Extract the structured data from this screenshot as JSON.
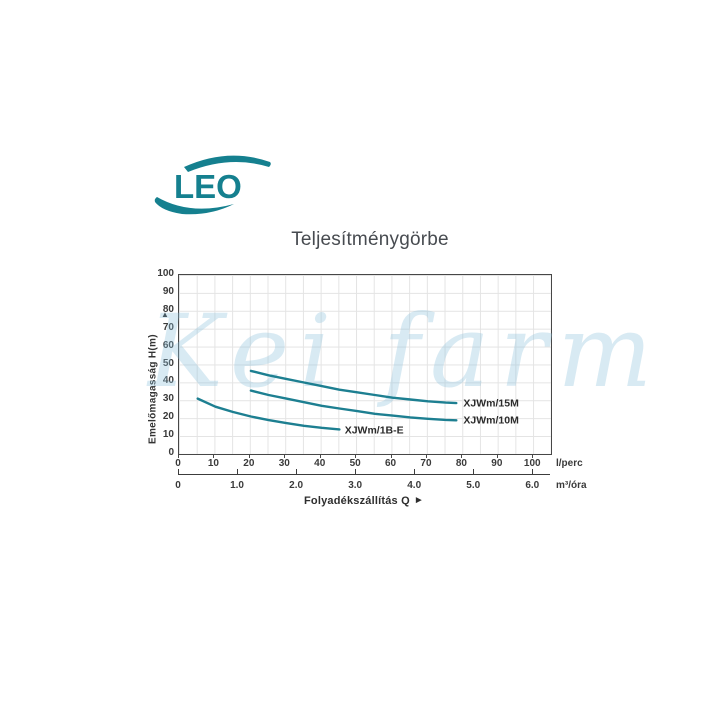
{
  "brand": {
    "logo_text": "LEO",
    "color": "#15808f"
  },
  "title": "Teljesítménygörbe",
  "watermark": "Kei farm",
  "icons": {
    "up_arrow": "▲",
    "right_arrow": "►"
  },
  "chart_data": {
    "type": "line",
    "title": "Teljesítménygörbe",
    "curve_color": "#1d7f91",
    "grid": {
      "x_step_lperc": 5,
      "y_step_m": 10,
      "grid_on": true
    },
    "y_axis": {
      "label": "Emelőmagasság  H(m)",
      "ticks": [
        0,
        10,
        20,
        30,
        40,
        50,
        60,
        70,
        80,
        90,
        100
      ],
      "range": [
        0,
        100
      ]
    },
    "x_axis": {
      "label": "Folyadékszállítás Q",
      "primary_unit": "l/perc",
      "primary_ticks": [
        0,
        10,
        20,
        30,
        40,
        50,
        60,
        70,
        80,
        90,
        100
      ],
      "primary_range": [
        0,
        105
      ],
      "secondary_unit": "m³/óra",
      "secondary_tick_labels": [
        "0",
        "1.0",
        "2.0",
        "3.0",
        "4.0",
        "5.0",
        "6.0"
      ]
    },
    "series": [
      {
        "name": "XJWm/15M",
        "points": [
          [
            20,
            47
          ],
          [
            25,
            44.5
          ],
          [
            30,
            42.5
          ],
          [
            35,
            40.5
          ],
          [
            40,
            38.5
          ],
          [
            45,
            36.5
          ],
          [
            50,
            35
          ],
          [
            55,
            33.5
          ],
          [
            60,
            32
          ],
          [
            65,
            31
          ],
          [
            70,
            30
          ],
          [
            75,
            29.3
          ],
          [
            78,
            29
          ]
        ],
        "label_at": [
          80,
          29
        ]
      },
      {
        "name": "XJWm/10M",
        "points": [
          [
            20,
            36
          ],
          [
            25,
            33.5
          ],
          [
            30,
            31.5
          ],
          [
            35,
            29.5
          ],
          [
            40,
            27.5
          ],
          [
            45,
            26
          ],
          [
            50,
            24.5
          ],
          [
            55,
            23
          ],
          [
            60,
            22
          ],
          [
            65,
            21
          ],
          [
            70,
            20.2
          ],
          [
            75,
            19.6
          ],
          [
            78,
            19.4
          ]
        ],
        "label_at": [
          80,
          19.5
        ]
      },
      {
        "name": "XJWm/1B-E",
        "points": [
          [
            5,
            31.5
          ],
          [
            10,
            27
          ],
          [
            15,
            24
          ],
          [
            20,
            21.5
          ],
          [
            25,
            19.5
          ],
          [
            30,
            17.8
          ],
          [
            35,
            16.3
          ],
          [
            40,
            15.2
          ],
          [
            45,
            14.3
          ]
        ],
        "label_at": [
          46.5,
          14
        ]
      }
    ]
  }
}
